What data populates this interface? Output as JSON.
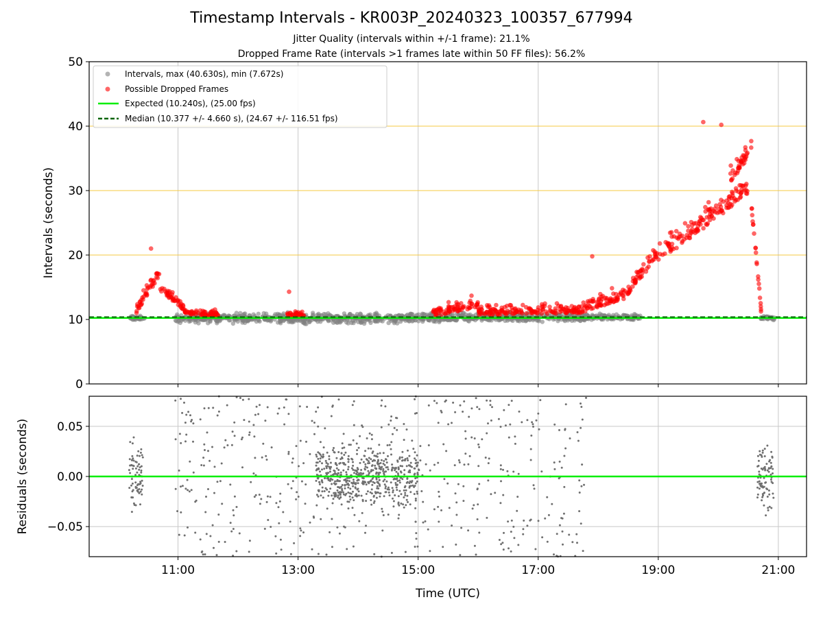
{
  "chart_data": [
    {
      "type": "scatter",
      "title": "Timestamp Intervals - KR003P_20240323_100357_677994",
      "subtitle_lines": [
        "Jitter Quality (intervals within +/-1 frame): 21.1%",
        "Dropped Frame Rate (intervals >1 frames late within 50 FF files): 56.2%"
      ],
      "ylabel": "Intervals (seconds)",
      "ylim": [
        0,
        50
      ],
      "xlim_hours": [
        9.52,
        21.47
      ],
      "yticks": [
        "0",
        "10",
        "20",
        "30",
        "40",
        "50"
      ],
      "grid": true,
      "legend_position": "upper-left",
      "legend": [
        "Intervals, max (40.630s), min (7.672s)",
        "Possible Dropped Frames",
        "Expected (10.240s), (25.00 fps)",
        "Median (10.377 +/- 4.660 s), (24.67 +/- 116.51 fps)"
      ],
      "reference_lines": {
        "expected": 10.24,
        "median": 10.377,
        "horizontal_highlight": [
          20,
          30,
          40
        ]
      },
      "series": [
        {
          "label_key": "intervals",
          "color": "#808080",
          "segments": [
            {
              "x0": 10.18,
              "x1": 10.45,
              "base": 10.2,
              "spread": 0.35
            },
            {
              "x0": 10.95,
              "x1": 15.0,
              "base": 10.2,
              "spread": 0.75
            },
            {
              "x0": 15.0,
              "x1": 17.9,
              "base": 10.3,
              "spread": 0.7
            },
            {
              "x0": 17.9,
              "x1": 18.7,
              "base": 10.4,
              "spread": 0.5
            },
            {
              "x0": 20.7,
              "x1": 20.95,
              "base": 10.2,
              "spread": 0.3
            }
          ]
        },
        {
          "label_key": "dropped",
          "color": "#ff0000",
          "segments": [
            {
              "x0": 10.3,
              "x1": 10.7,
              "y0": 11.5,
              "y1": 17.5,
              "spread": 2.8
            },
            {
              "x0": 10.7,
              "x1": 11.1,
              "y0": 15.0,
              "y1": 11.8,
              "spread": 1.8
            },
            {
              "x0": 11.1,
              "x1": 11.7,
              "y0": 11.2,
              "y1": 10.8,
              "spread": 1.3
            },
            {
              "x0": 12.82,
              "x1": 13.1,
              "y0": 10.8,
              "y1": 10.8,
              "spread": 0.8
            },
            {
              "x0": 15.25,
              "x1": 16.0,
              "y0": 11.0,
              "y1": 12.5,
              "spread": 2.3
            },
            {
              "x0": 16.0,
              "x1": 17.8,
              "y0": 11.2,
              "y1": 11.5,
              "spread": 2.0
            },
            {
              "x0": 17.8,
              "x1": 18.5,
              "y0": 12.0,
              "y1": 14.0,
              "spread": 2.6
            },
            {
              "x0": 18.5,
              "x1": 19.0,
              "y0": 14.5,
              "y1": 20.5,
              "spread": 2.6
            },
            {
              "x0": 19.0,
              "x1": 20.5,
              "y0": 20.0,
              "y1": 30.5,
              "spread": 4.5
            },
            {
              "x0": 20.2,
              "x1": 20.55,
              "y0": 32.0,
              "y1": 36.5,
              "spread": 3.2
            },
            {
              "x0": 20.55,
              "x1": 20.72,
              "y0": 28.0,
              "y1": 10.8,
              "spread": 2.0
            }
          ],
          "extremes": [
            [
              20.05,
              40.2
            ],
            [
              19.75,
              40.63
            ],
            [
              10.55,
              21.0
            ],
            [
              17.9,
              19.8
            ],
            [
              12.85,
              14.3
            ]
          ]
        }
      ]
    },
    {
      "type": "scatter",
      "xlabel": "Time (UTC)",
      "ylabel": "Residuals (seconds)",
      "ylim": [
        -0.08,
        0.08
      ],
      "yticks": [
        "−0.05",
        "0.00",
        "0.05"
      ],
      "xticks": [
        "11:00",
        "13:00",
        "15:00",
        "17:00",
        "19:00",
        "21:00"
      ],
      "xtick_hours": [
        11,
        13,
        15,
        17,
        19,
        21
      ],
      "zero_line": 0,
      "series": [
        {
          "color": "#707070",
          "clusters": [
            {
              "x0": 10.18,
              "x1": 10.42,
              "dense": true
            },
            {
              "x0": 10.95,
              "x1": 15.05,
              "dense": false
            },
            {
              "x0": 13.3,
              "x1": 15.0,
              "dense": true
            },
            {
              "x0": 15.05,
              "x1": 17.8,
              "dense": false
            },
            {
              "x0": 20.65,
              "x1": 20.92,
              "dense": true
            }
          ]
        }
      ]
    }
  ],
  "colors": {
    "intervals": "#808080",
    "dropped": "#ff0000",
    "expected_line": "#00ee00",
    "median_line": "#006400",
    "highlight_line": "#f5c842",
    "grid": "#c8c8c8",
    "residual_points": "#707070"
  }
}
